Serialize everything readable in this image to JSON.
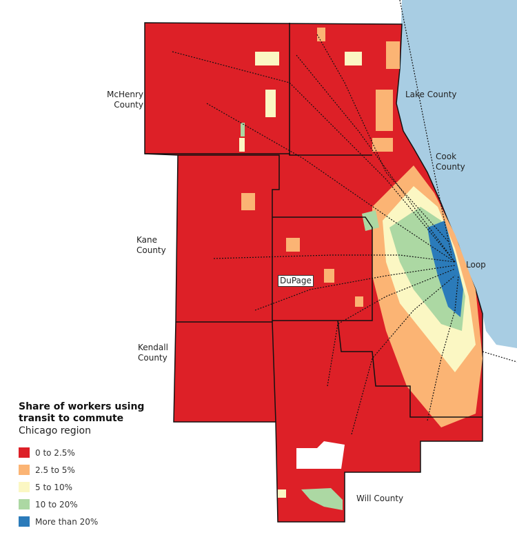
{
  "labels": {
    "mchenry": "McHenry\nCounty",
    "lake": "Lake County",
    "cook": "Cook\nCounty",
    "kane": "Kane\nCounty",
    "dupage": "DuPage",
    "loop": "Loop",
    "kendall": "Kendall\nCounty",
    "will": "Will County"
  },
  "legend": {
    "title": "Share of workers using transit to commute",
    "subtitle": "Chicago region",
    "items": [
      {
        "label": "0 to 2.5%",
        "color": "#dd2027"
      },
      {
        "label": "2.5 to 5%",
        "color": "#fbb474"
      },
      {
        "label": "5 to 10%",
        "color": "#fbf7c3"
      },
      {
        "label": "10 to 20%",
        "color": "#acd8a3"
      },
      {
        "label": "More than 20%",
        "color": "#2b7bba"
      }
    ]
  },
  "colors": {
    "water": "#a8cde3",
    "rail": "#111111",
    "border": "#111111"
  }
}
